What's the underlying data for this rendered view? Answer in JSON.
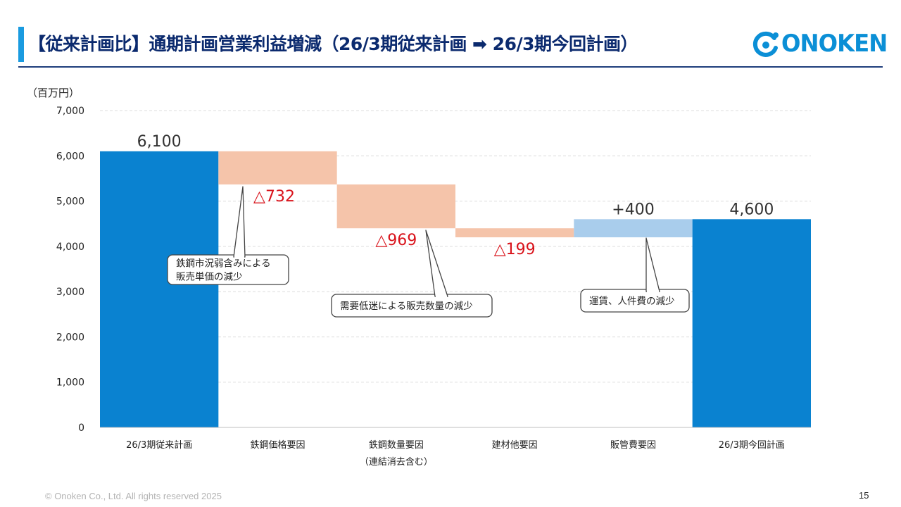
{
  "title": "【従来計画比】通期計画営業利益増減（26/3期従来計画 ➡ 26/3期今回計画）",
  "logo": {
    "text": "ONOKEN",
    "icon": "onoken-ring-logo-icon"
  },
  "colors": {
    "total": "#0a82d0",
    "decrease": "#f5c4aa",
    "increase": "#a9cdec",
    "negative_label": "#d9131b",
    "title": "#0b2a6e",
    "accent": "#1a9be0"
  },
  "chart_data": {
    "type": "waterfall",
    "ylabel": "（百万円）",
    "ylim": [
      0,
      7000
    ],
    "yticks": [
      0,
      1000,
      2000,
      3000,
      4000,
      5000,
      6000,
      7000
    ],
    "ytick_labels": [
      "0",
      "1,000",
      "2,000",
      "3,000",
      "4,000",
      "5,000",
      "6,000",
      "7,000"
    ],
    "grid": true,
    "categories": [
      {
        "label": "26/3期従来計画",
        "sublabel": ""
      },
      {
        "label": "鉄鋼価格要因",
        "sublabel": ""
      },
      {
        "label": "鉄鋼数量要因",
        "sublabel": "（連結消去含む）"
      },
      {
        "label": "建材他要因",
        "sublabel": ""
      },
      {
        "label": "販管費要因",
        "sublabel": ""
      },
      {
        "label": "26/3期今回計画",
        "sublabel": ""
      }
    ],
    "bars": [
      {
        "kind": "total",
        "start": 0,
        "end": 6100,
        "value": 6100,
        "label": "6,100"
      },
      {
        "kind": "decrease",
        "start": 6100,
        "end": 5368,
        "value": -732,
        "label": "△732"
      },
      {
        "kind": "decrease",
        "start": 5368,
        "end": 4399,
        "value": -969,
        "label": "△969"
      },
      {
        "kind": "decrease",
        "start": 4399,
        "end": 4200,
        "value": -199,
        "label": "△199"
      },
      {
        "kind": "increase",
        "start": 4200,
        "end": 4600,
        "value": 400,
        "label": "+400"
      },
      {
        "kind": "total",
        "start": 0,
        "end": 4600,
        "value": 4600,
        "label": "4,600"
      }
    ],
    "annotations": [
      {
        "bar": 1,
        "lines": [
          "鉄鋼市況弱含みによる",
          "販売単価の減少"
        ]
      },
      {
        "bar": 2,
        "lines": [
          "需要低迷による販売数量の減少"
        ]
      },
      {
        "bar": 4,
        "lines": [
          "運賃、人件費の減少"
        ]
      }
    ]
  },
  "footer": {
    "copyright": "© Onoken Co., Ltd. All rights reserved 2025",
    "page": "15"
  }
}
